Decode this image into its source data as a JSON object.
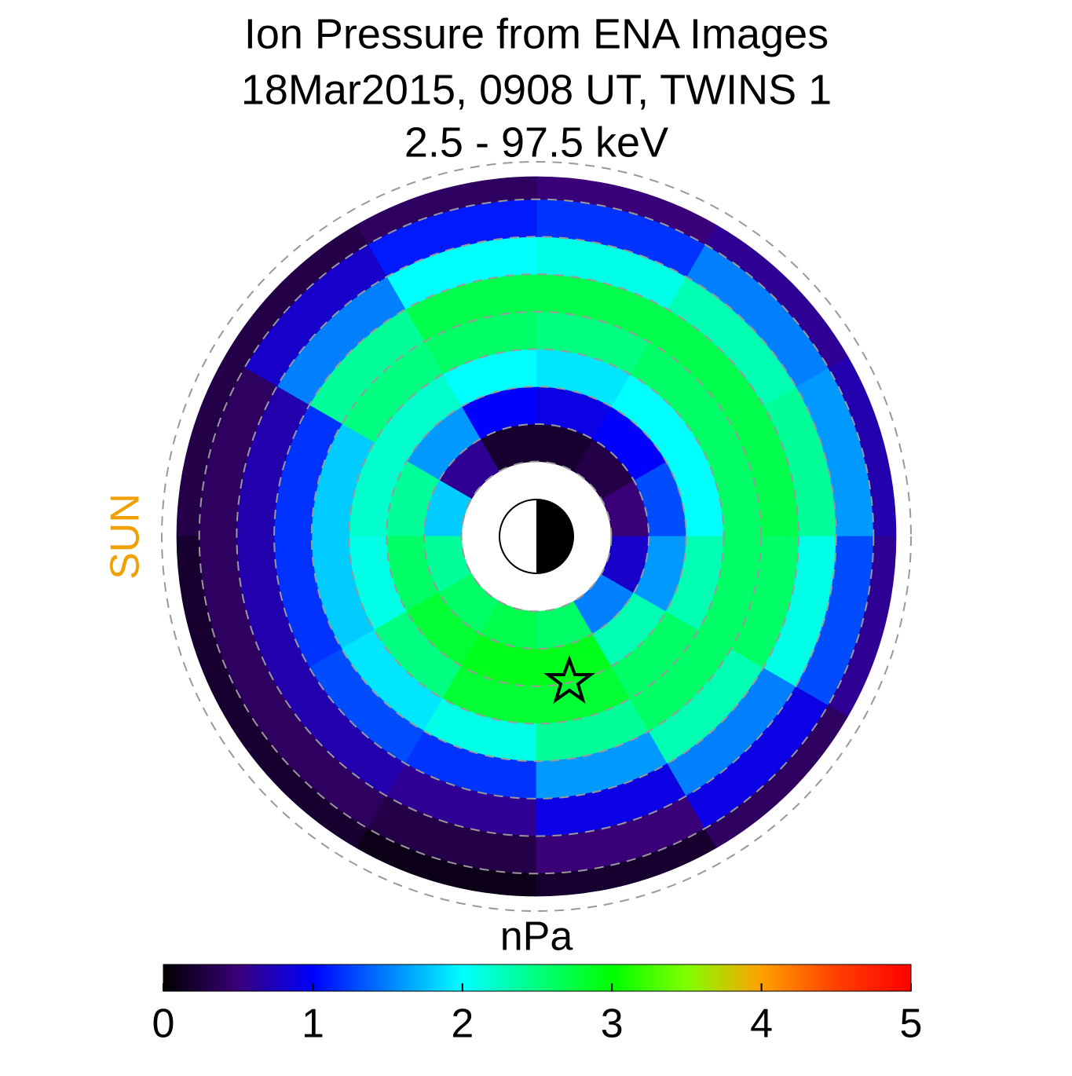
{
  "chart_data": {
    "type": "polar-heatmap",
    "title": [
      "Ion Pressure from  ENA Images",
      "18Mar2015, 0908 UT,  TWINS 1",
      "2.5 - 97.5 keV"
    ],
    "direction_label": "SUN",
    "r_edges": [
      2,
      3,
      4,
      5,
      6,
      7,
      8,
      9,
      9.6
    ],
    "theta_edges": [
      0,
      30,
      60,
      90,
      120,
      150,
      180,
      210,
      240,
      270,
      300,
      330,
      360
    ],
    "values": [
      [
        0.5,
        0.3,
        0.2,
        0.2,
        0.6,
        1.8,
        2.4,
        2.6,
        2.7,
        2.6,
        1.5,
        0.8
      ],
      [
        1.3,
        1.0,
        0.9,
        1.0,
        1.6,
        2.4,
        2.6,
        2.8,
        2.9,
        2.9,
        2.3,
        1.6
      ],
      [
        2.0,
        2.0,
        1.9,
        2.0,
        2.2,
        2.2,
        2.1,
        2.5,
        2.8,
        2.8,
        2.6,
        2.3
      ],
      [
        2.6,
        2.6,
        2.5,
        2.6,
        2.5,
        1.8,
        1.8,
        1.9,
        2.1,
        2.4,
        2.6,
        2.6
      ],
      [
        2.7,
        2.7,
        2.7,
        2.7,
        2.4,
        1.2,
        1.2,
        1.3,
        1.2,
        1.6,
        2.3,
        2.6
      ],
      [
        2.4,
        2.3,
        2.1,
        2.0,
        1.5,
        0.7,
        0.7,
        0.7,
        0.6,
        0.9,
        1.5,
        2.1
      ],
      [
        1.6,
        1.5,
        1.2,
        1.1,
        0.8,
        0.4,
        0.4,
        0.4,
        0.3,
        0.5,
        0.9,
        1.3
      ],
      [
        0.7,
        0.6,
        0.5,
        0.4,
        0.3,
        0.3,
        0.2,
        0.2,
        0.1,
        0.2,
        0.4,
        0.6
      ]
    ],
    "rticks": [
      2,
      3,
      4,
      5,
      6,
      7,
      8,
      9,
      10
    ],
    "colorbar": {
      "label": "nPa",
      "lim": [
        0,
        5
      ],
      "ticks": [
        0,
        1,
        2,
        3,
        4,
        5
      ],
      "colors": [
        "#000000",
        "#3a0078",
        "#0000ff",
        "#0080ff",
        "#00ffff",
        "#00ff80",
        "#00ff00",
        "#80ff00",
        "#ffa000",
        "#ff4000",
        "#ff0000"
      ]
    }
  }
}
